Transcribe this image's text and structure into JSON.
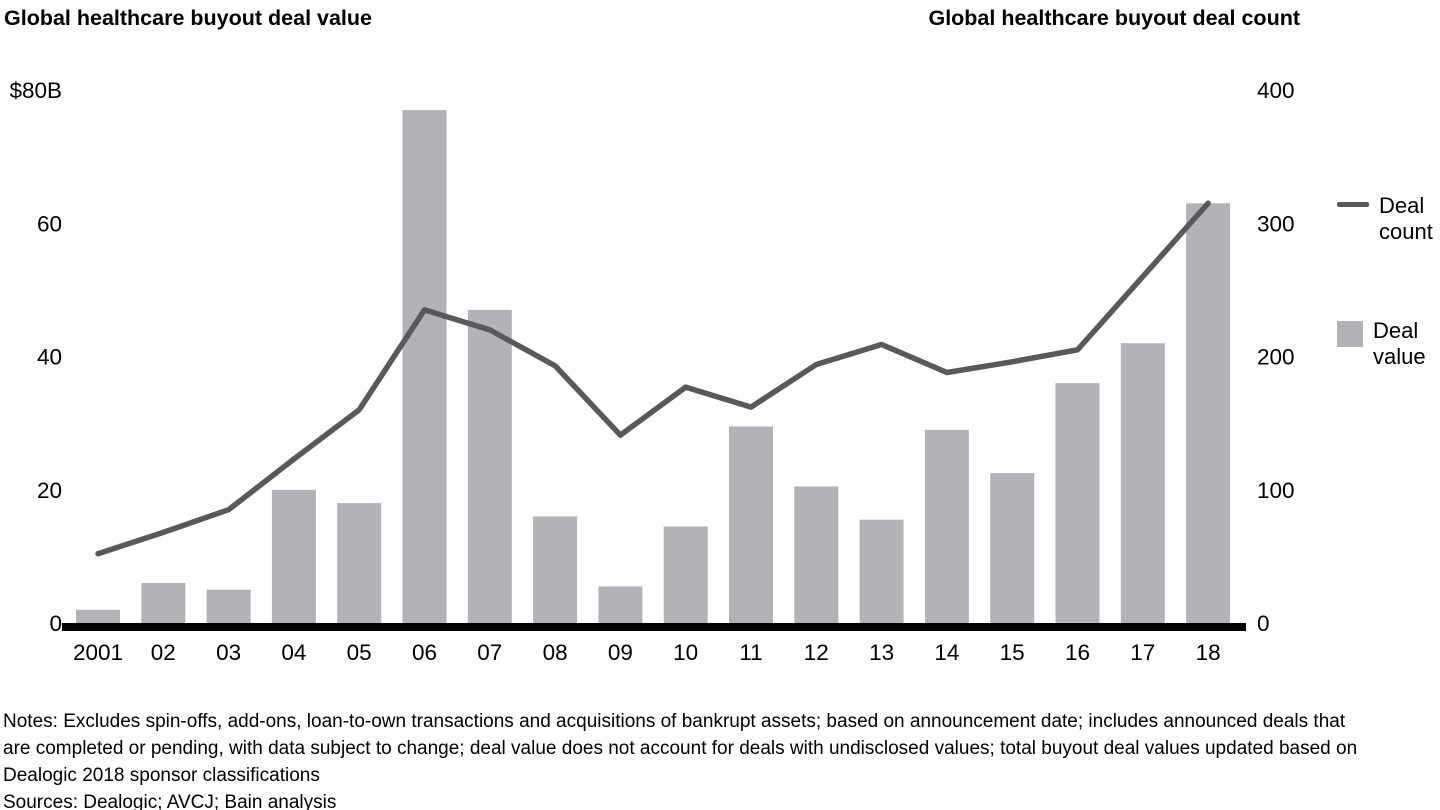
{
  "titles": {
    "left": "Global healthcare buyout deal value",
    "right": "Global healthcare buyout deal count"
  },
  "legend": {
    "count_label": "Deal count",
    "value_label": "Deal value"
  },
  "chart_data": {
    "type": "combo_bar_line",
    "categories": [
      "2001",
      "02",
      "03",
      "04",
      "05",
      "06",
      "07",
      "08",
      "09",
      "10",
      "11",
      "12",
      "13",
      "14",
      "15",
      "16",
      "17",
      "18"
    ],
    "series": [
      {
        "name": "Deal value",
        "type": "bar",
        "axis": "left",
        "unit": "$B",
        "values": [
          2,
          6,
          5,
          20,
          18,
          77,
          47,
          16,
          5.5,
          14.5,
          29.5,
          20.5,
          15.5,
          29,
          22.5,
          36,
          42,
          63
        ]
      },
      {
        "name": "Deal count",
        "type": "line",
        "axis": "right",
        "values": [
          52,
          68,
          85,
          123,
          160,
          235,
          220,
          193,
          141,
          177,
          162,
          194,
          209,
          188,
          196,
          205,
          260,
          315
        ]
      }
    ],
    "left_axis": {
      "range": [
        0,
        80
      ],
      "ticks": [
        0,
        20,
        40,
        60,
        80
      ],
      "tick_labels": [
        "0",
        "20",
        "40",
        "60",
        "$80B"
      ]
    },
    "right_axis": {
      "range": [
        0,
        400
      ],
      "ticks": [
        0,
        100,
        200,
        300,
        400
      ],
      "tick_labels": [
        "0",
        "100",
        "200",
        "300",
        "400"
      ]
    },
    "grid": false,
    "legend_position": "right",
    "colors": {
      "bar": "#b1b3b6",
      "line": "#58595b",
      "axis": "#000000"
    }
  },
  "notes": {
    "lines": [
      "Notes: Excludes spin-offs, add-ons, loan-to-own transactions and acquisitions of bankrupt assets; based on announcement date; includes announced deals that",
      "are completed or pending, with data subject to change; deal value does not account for deals with undisclosed values; total buyout deal values updated based on",
      "Dealogic 2018 sponsor classifications"
    ],
    "sources": "Sources: Dealogic; AVCJ; Bain analysis"
  }
}
